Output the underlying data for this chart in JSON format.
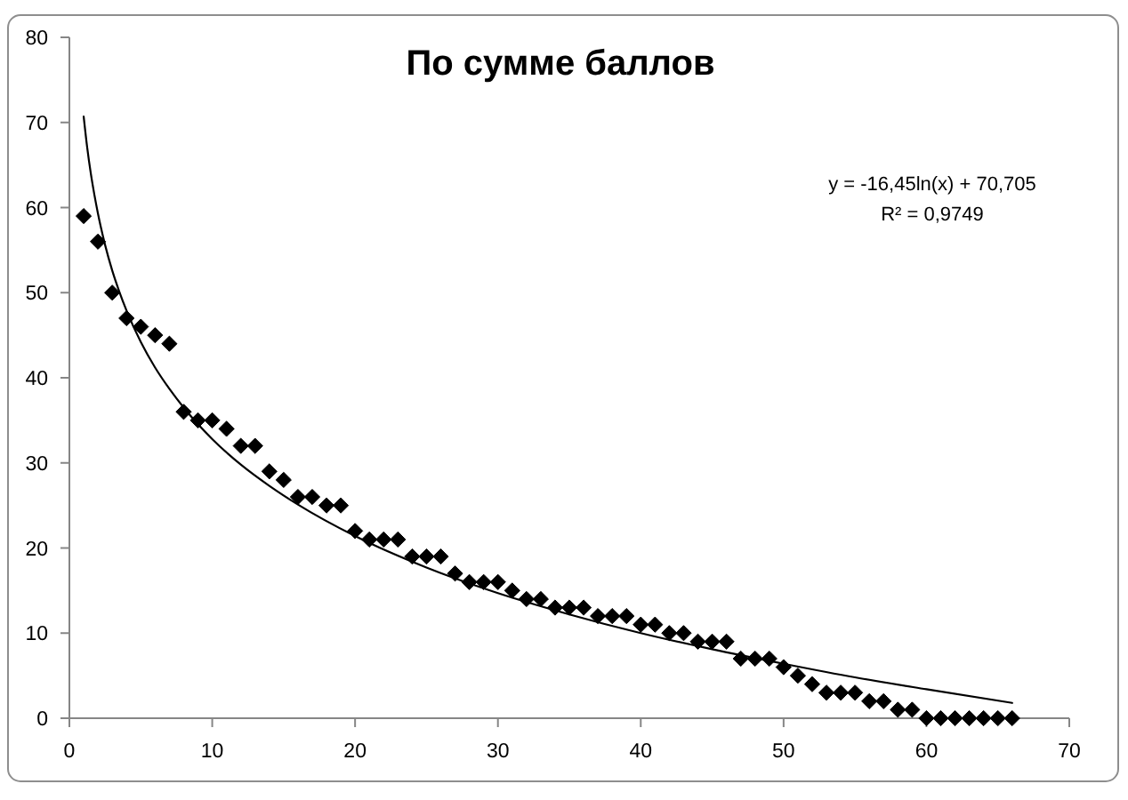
{
  "chart_data": {
    "type": "scatter",
    "title": "По сумме баллов",
    "xlim": [
      0,
      70
    ],
    "xticks": [
      0,
      10,
      20,
      30,
      40,
      50,
      60,
      70
    ],
    "ylim": [
      0,
      80
    ],
    "yticks": [
      0,
      10,
      20,
      30,
      40,
      50,
      60,
      70,
      80
    ],
    "marker": "diamond",
    "series": [
      {
        "color": "#000000",
        "x": [
          1,
          2,
          3,
          4,
          5,
          6,
          7,
          8,
          9,
          10,
          11,
          12,
          13,
          14,
          15,
          16,
          17,
          18,
          19,
          20,
          21,
          22,
          23,
          24,
          25,
          26,
          27,
          28,
          29,
          30,
          31,
          32,
          33,
          34,
          35,
          36,
          37,
          38,
          39,
          40,
          41,
          42,
          43,
          44,
          45,
          46,
          47,
          48,
          49,
          50,
          51,
          52,
          53,
          54,
          55,
          56,
          57,
          58,
          59,
          60,
          61,
          62,
          63,
          64,
          65,
          66
        ],
        "values": [
          59,
          56,
          50,
          47,
          46,
          45,
          44,
          36,
          35,
          35,
          34,
          32,
          32,
          29,
          28,
          26,
          26,
          25,
          25,
          22,
          21,
          21,
          21,
          19,
          19,
          19,
          17,
          16,
          16,
          16,
          15,
          14,
          14,
          13,
          13,
          13,
          12,
          12,
          12,
          11,
          11,
          10,
          10,
          9,
          9,
          9,
          7,
          7,
          7,
          6,
          5,
          4,
          3,
          3,
          3,
          2,
          2,
          1,
          1,
          0,
          0,
          0,
          0,
          0,
          0,
          0
        ]
      },
      {
        "type": "line",
        "color": "#000000",
        "marker": "none",
        "line_style": "solid",
        "x": [
          1,
          1.25,
          1.5,
          1.75,
          2,
          2.5,
          3,
          3.5,
          4,
          5,
          6,
          7,
          8,
          10,
          12,
          14,
          16,
          20,
          25,
          30,
          35,
          40,
          45,
          50,
          55,
          60,
          66
        ],
        "values": [
          70.7,
          67.0,
          64.0,
          61.5,
          59.3,
          55.6,
          52.6,
          50.1,
          47.9,
          44.2,
          41.2,
          38.7,
          36.5,
          32.8,
          29.8,
          27.3,
          25.1,
          21.4,
          17.7,
          14.7,
          12.2,
          10.0,
          8.1,
          6.4,
          4.8,
          3.4,
          1.8
        ]
      }
    ],
    "annotations": [
      "y = -16,45ln(x) + 70,705",
      "R² = 0,9749"
    ]
  }
}
